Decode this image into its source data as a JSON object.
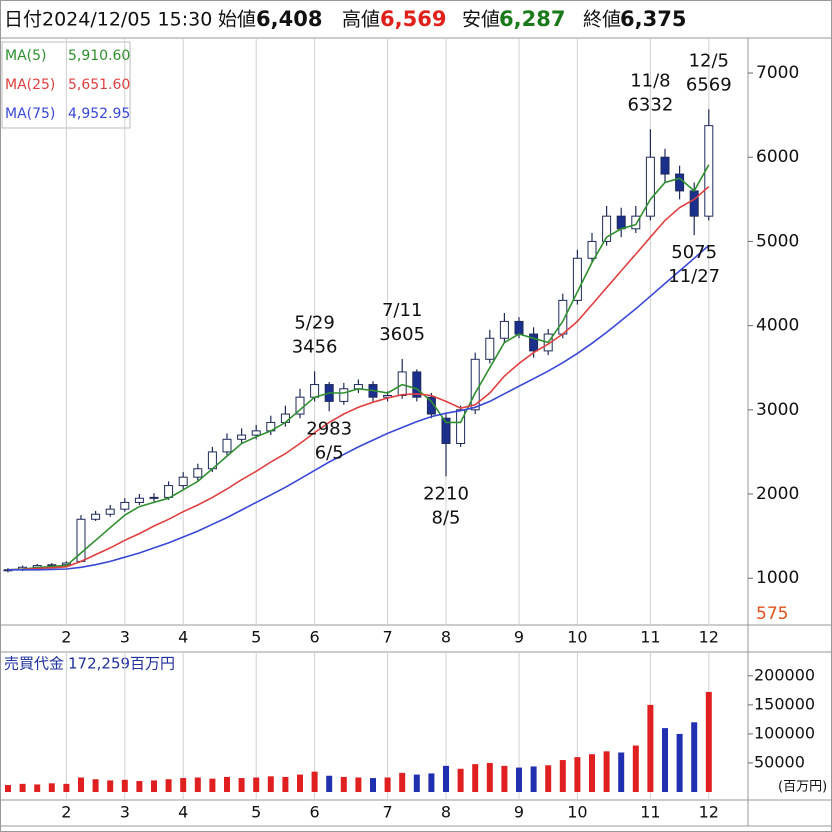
{
  "header": {
    "date_label": "日付",
    "datetime": "2024/12/05 15:30",
    "items": [
      {
        "name": "始値",
        "value": 6408,
        "label": "6,408",
        "color": "#111111"
      },
      {
        "name": "高値",
        "value": 6569,
        "label": "6,569",
        "color": "#e0201a"
      },
      {
        "name": "安値",
        "value": 6287,
        "label": "6,287",
        "color": "#1a7a1a"
      },
      {
        "name": "終値",
        "value": 6375,
        "label": "6,375",
        "color": "#111111"
      }
    ]
  },
  "chart_data": [
    {
      "type": "candlestick",
      "categories": [
        null,
        null,
        null,
        null,
        "2",
        null,
        null,
        null,
        "3",
        null,
        null,
        null,
        "4",
        null,
        null,
        null,
        null,
        "5",
        null,
        null,
        null,
        "6",
        null,
        null,
        null,
        null,
        "7",
        null,
        null,
        null,
        "8",
        null,
        null,
        null,
        null,
        "9",
        null,
        null,
        null,
        "10",
        null,
        null,
        null,
        null,
        "11",
        null,
        null,
        null,
        "12"
      ],
      "open": [
        1090,
        1100,
        1130,
        1150,
        1160,
        1200,
        1700,
        1760,
        1820,
        1900,
        1950,
        1960,
        2100,
        2200,
        2300,
        2500,
        2650,
        2700,
        2750,
        2850,
        2950,
        3150,
        3300,
        3100,
        3250,
        3300,
        3150,
        3170,
        3450,
        3150,
        2900,
        2600,
        3000,
        3600,
        3850,
        4050,
        3900,
        3700,
        3900,
        4300,
        4800,
        5000,
        5300,
        5150,
        5300,
        6000,
        5800,
        5600,
        5300
      ],
      "high": [
        1120,
        1150,
        1170,
        1180,
        1200,
        1750,
        1800,
        1870,
        1950,
        2000,
        2010,
        2150,
        2260,
        2360,
        2560,
        2720,
        2780,
        2820,
        2930,
        3050,
        3250,
        3456,
        3330,
        3320,
        3360,
        3340,
        3220,
        3605,
        3480,
        3200,
        2950,
        3050,
        3680,
        3950,
        4150,
        4100,
        3980,
        3960,
        4380,
        4900,
        5100,
        5420,
        5400,
        5420,
        6332,
        6100,
        5900,
        5700,
        6569
      ],
      "low": [
        1070,
        1085,
        1110,
        1130,
        1140,
        1190,
        1680,
        1730,
        1790,
        1870,
        1910,
        1930,
        2060,
        2160,
        2260,
        2460,
        2600,
        2650,
        2700,
        2800,
        2900,
        3100,
        2983,
        3060,
        3200,
        3100,
        3100,
        3130,
        3100,
        2900,
        2210,
        2560,
        2950,
        3550,
        3800,
        3850,
        3620,
        3650,
        3850,
        4250,
        4750,
        4950,
        5050,
        5100,
        5250,
        5700,
        5500,
        5075,
        5250
      ],
      "close": [
        1100,
        1130,
        1150,
        1160,
        1180,
        1700,
        1760,
        1820,
        1900,
        1950,
        1960,
        2100,
        2200,
        2300,
        2500,
        2650,
        2700,
        2750,
        2850,
        2950,
        3150,
        3300,
        3100,
        3250,
        3300,
        3150,
        3170,
        3450,
        3150,
        2950,
        2600,
        3000,
        3600,
        3850,
        4050,
        3900,
        3700,
        3900,
        4300,
        4800,
        5000,
        5300,
        5150,
        5300,
        6000,
        5800,
        5600,
        5300,
        6375
      ],
      "up_color": "#ffffff",
      "down_color": "#1b2f8c",
      "candle_stroke": "#1e2a5a",
      "series": [
        {
          "name": "MA(5)",
          "color": "#2f8f2f",
          "latest_label": "5,910.60",
          "values": [
            1100,
            1110,
            1125,
            1140,
            1150,
            1300,
            1450,
            1600,
            1750,
            1850,
            1900,
            1950,
            2050,
            2150,
            2300,
            2450,
            2600,
            2680,
            2750,
            2850,
            3000,
            3150,
            3200,
            3200,
            3250,
            3230,
            3200,
            3300,
            3250,
            3100,
            2850,
            2850,
            3200,
            3500,
            3800,
            3900,
            3850,
            3800,
            4050,
            4400,
            4750,
            5050,
            5150,
            5200,
            5500,
            5700,
            5750,
            5600,
            5910.6
          ]
        },
        {
          "name": "MA(25)",
          "color": "#e04040",
          "latest_label": "5,651.60",
          "values": [
            1100,
            1105,
            1115,
            1125,
            1135,
            1200,
            1280,
            1360,
            1450,
            1530,
            1620,
            1700,
            1790,
            1870,
            1960,
            2060,
            2170,
            2270,
            2380,
            2480,
            2600,
            2730,
            2850,
            2950,
            3030,
            3090,
            3140,
            3180,
            3190,
            3170,
            3100,
            3020,
            3060,
            3200,
            3400,
            3550,
            3680,
            3780,
            3900,
            4050,
            4250,
            4450,
            4650,
            4850,
            5050,
            5250,
            5400,
            5500,
            5651.6
          ]
        },
        {
          "name": "MA(75)",
          "color": "#3a48d8",
          "latest_label": "4,952.95",
          "values": [
            1100,
            1100,
            1100,
            1105,
            1110,
            1130,
            1160,
            1200,
            1250,
            1300,
            1360,
            1420,
            1490,
            1560,
            1640,
            1720,
            1810,
            1900,
            1990,
            2080,
            2180,
            2280,
            2380,
            2470,
            2560,
            2640,
            2720,
            2790,
            2860,
            2920,
            2960,
            2990,
            3030,
            3100,
            3190,
            3280,
            3370,
            3460,
            3560,
            3670,
            3790,
            3920,
            4060,
            4200,
            4350,
            4500,
            4650,
            4800,
            4952.95
          ]
        }
      ],
      "ylim": [
        575,
        7416
      ],
      "ylim_label_color": "#e0501a",
      "yticks": [
        1000,
        2000,
        3000,
        4000,
        5000,
        6000,
        7000
      ],
      "xgrid": true,
      "annotations": [
        {
          "date": "5/29",
          "price": 3456,
          "kind": "high"
        },
        {
          "date": "6/5",
          "price": 2983,
          "kind": "low"
        },
        {
          "date": "7/11",
          "price": 3605,
          "kind": "high"
        },
        {
          "date": "8/5",
          "price": 2210,
          "kind": "low"
        },
        {
          "date": "11/8",
          "price": 6332,
          "kind": "high"
        },
        {
          "date": "11/27",
          "price": 5075,
          "kind": "low"
        },
        {
          "date": "12/5",
          "price": 6569,
          "kind": "high"
        }
      ]
    },
    {
      "type": "bar",
      "title": "売買代金",
      "latest_label": "172,259百万円",
      "unit": "(百万円)",
      "up_color": "#e02020",
      "down_color": "#2030b0",
      "values": [
        12000,
        14000,
        13000,
        15000,
        14000,
        25000,
        22000,
        20000,
        21000,
        19000,
        20000,
        22000,
        24000,
        25000,
        23000,
        26000,
        24000,
        25000,
        27000,
        26000,
        30000,
        35000,
        28000,
        26000,
        25000,
        24000,
        25000,
        33000,
        30000,
        32000,
        45000,
        40000,
        48000,
        50000,
        45000,
        42000,
        44000,
        46000,
        55000,
        60000,
        65000,
        70000,
        68000,
        80000,
        150000,
        110000,
        100000,
        120000,
        172259
      ],
      "ylim": [
        0,
        241000
      ],
      "yticks": [
        50000,
        100000,
        150000,
        200000
      ],
      "xgrid": true
    }
  ]
}
